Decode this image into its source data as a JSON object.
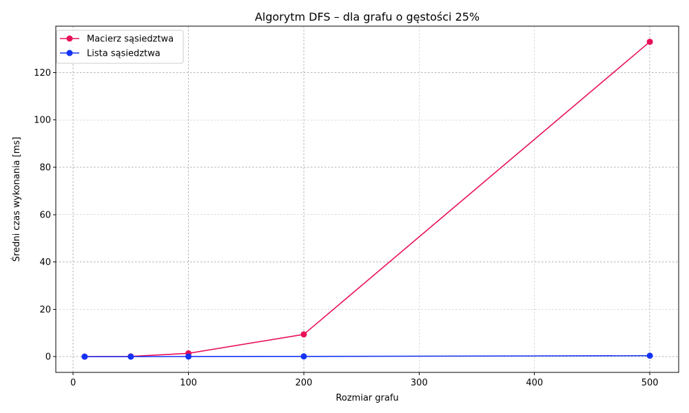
{
  "chart_data": {
    "type": "line",
    "title": "Algorytm DFS – dla grafu o gęstości 25%",
    "xlabel": "Rozmiar grafu",
    "ylabel": "Średni czas wykonania [ms]",
    "xlim": [
      -15,
      525
    ],
    "ylim": [
      -6.65,
      139.6
    ],
    "xticks": [
      0,
      100,
      200,
      300,
      400,
      500
    ],
    "yticks": [
      0,
      20,
      40,
      60,
      80,
      100,
      120
    ],
    "grid": true,
    "legend_position": "top-left",
    "series": [
      {
        "name": "Macierz sąsiedztwa",
        "color": "#e8105a",
        "x": [
          10,
          50,
          100,
          200,
          500
        ],
        "y": [
          0.0,
          0.1,
          1.4,
          9.4,
          133.0
        ]
      },
      {
        "name": "Lista sąsiedztwa",
        "color": "#1432f5",
        "x": [
          10,
          50,
          100,
          200,
          500
        ],
        "y": [
          0.0,
          0.0,
          0.05,
          0.1,
          0.4
        ]
      }
    ]
  }
}
